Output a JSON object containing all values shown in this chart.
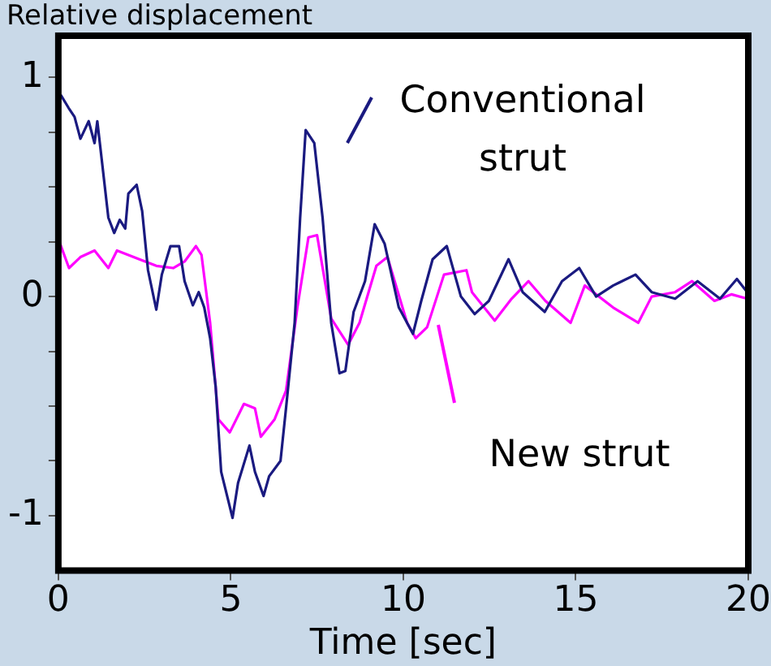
{
  "chart_data": {
    "type": "line",
    "title": "Relative displacement",
    "xlabel": "Time [sec]",
    "xlim": [
      0,
      20
    ],
    "xticks": [
      0,
      5,
      10,
      15,
      20
    ],
    "ylim": [
      -1.25,
      1.19
    ],
    "yticks": [
      {
        "value": -1,
        "label": "-1"
      },
      {
        "value": -0.75,
        "label": null
      },
      {
        "value": -0.5,
        "label": null
      },
      {
        "value": -0.25,
        "label": null
      },
      {
        "value": 0,
        "label": "0"
      },
      {
        "value": 0.25,
        "label": null
      },
      {
        "value": 0.5,
        "label": null
      },
      {
        "value": 0.75,
        "label": null
      },
      {
        "value": 1,
        "label": "1"
      }
    ],
    "annotations": [
      "Conventional strut",
      "New strut"
    ],
    "grid": false,
    "legend": false,
    "marker": "none",
    "line_style": "solid",
    "series": [
      {
        "color": "#1a1a80",
        "x": [
          0.07,
          0.3,
          0.47,
          0.64,
          0.88,
          1.05,
          1.13,
          1.24,
          1.45,
          1.62,
          1.78,
          1.94,
          2.03,
          2.27,
          2.43,
          2.6,
          2.84,
          3.0,
          3.25,
          3.5,
          3.66,
          3.9,
          4.07,
          4.23,
          4.4,
          4.56,
          4.72,
          5.05,
          5.21,
          5.54,
          5.7,
          5.95,
          6.11,
          6.44,
          6.6,
          6.85,
          7.01,
          7.17,
          7.42,
          7.66,
          7.91,
          8.15,
          8.32,
          8.56,
          8.89,
          9.17,
          9.46,
          9.87,
          10.28,
          10.52,
          10.85,
          11.26,
          11.67,
          12.07,
          12.48,
          13.05,
          13.46,
          14.1,
          14.6,
          15.1,
          15.59,
          16.08,
          16.73,
          17.2,
          17.88,
          18.53,
          19.18,
          19.67,
          19.97
        ],
        "values": [
          0.92,
          0.86,
          0.82,
          0.72,
          0.8,
          0.7,
          0.8,
          0.65,
          0.36,
          0.29,
          0.35,
          0.31,
          0.47,
          0.51,
          0.39,
          0.12,
          -0.06,
          0.1,
          0.23,
          0.23,
          0.07,
          -0.04,
          0.02,
          -0.05,
          -0.19,
          -0.41,
          -0.8,
          -1.01,
          -0.85,
          -0.68,
          -0.8,
          -0.91,
          -0.82,
          -0.75,
          -0.51,
          -0.12,
          0.36,
          0.76,
          0.7,
          0.36,
          -0.12,
          -0.35,
          -0.34,
          -0.07,
          0.07,
          0.33,
          0.24,
          -0.05,
          -0.17,
          -0.02,
          0.17,
          0.23,
          0.0,
          -0.08,
          -0.02,
          0.17,
          0.02,
          -0.07,
          0.07,
          0.13,
          0.0,
          0.05,
          0.1,
          0.02,
          -0.01,
          0.07,
          -0.01,
          0.08,
          0.02
        ]
      },
      {
        "color": "#ff00ff",
        "x": [
          0.03,
          0.31,
          0.64,
          1.05,
          1.45,
          1.7,
          2.35,
          2.84,
          3.33,
          3.66,
          3.99,
          4.15,
          4.4,
          4.64,
          4.97,
          5.38,
          5.7,
          5.87,
          6.27,
          6.6,
          6.93,
          7.25,
          7.5,
          7.91,
          8.4,
          8.73,
          9.22,
          9.54,
          10.11,
          10.36,
          10.69,
          11.18,
          11.83,
          11.99,
          12.65,
          13.14,
          13.63,
          14.12,
          14.85,
          15.26,
          16.08,
          16.81,
          17.2,
          17.88,
          18.37,
          19.02,
          19.51,
          19.97
        ],
        "values": [
          0.25,
          0.13,
          0.18,
          0.21,
          0.13,
          0.21,
          0.17,
          0.14,
          0.13,
          0.16,
          0.23,
          0.19,
          -0.12,
          -0.56,
          -0.62,
          -0.49,
          -0.51,
          -0.64,
          -0.56,
          -0.43,
          -0.05,
          0.27,
          0.28,
          -0.1,
          -0.22,
          -0.12,
          0.14,
          0.18,
          -0.12,
          -0.19,
          -0.14,
          0.1,
          0.12,
          0.02,
          -0.11,
          -0.01,
          0.07,
          -0.02,
          -0.12,
          0.05,
          -0.05,
          -0.12,
          0.0,
          0.02,
          0.07,
          -0.02,
          0.01,
          -0.01
        ]
      }
    ]
  }
}
